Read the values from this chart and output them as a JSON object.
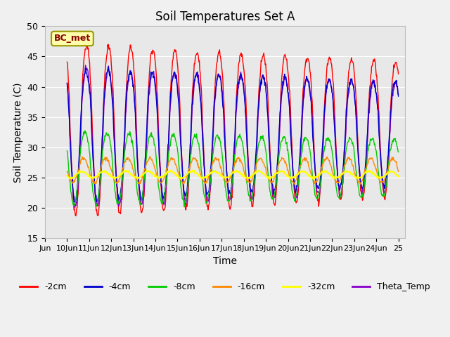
{
  "title": "Soil Temperatures Set A",
  "xlabel": "Time",
  "ylabel": "Soil Temperature (C)",
  "ylim": [
    15,
    50
  ],
  "annotation": "BC_met",
  "fig_bg_color": "#f0f0f0",
  "plot_bg_color": "#e8e8e8",
  "series_colors": {
    "-2cm": "#ff0000",
    "-4cm": "#0000cc",
    "-8cm": "#00cc00",
    "-16cm": "#ff8800",
    "-32cm": "#ffff00",
    "Theta_Temp": "#8800cc"
  },
  "tick_labels": [
    "Jun",
    "10Jun",
    "11Jun",
    "12Jun",
    "13Jun",
    "14Jun",
    "15Jun",
    "16Jun",
    "17Jun",
    "18Jun",
    "19Jun",
    "20Jun",
    "21Jun",
    "22Jun",
    "23Jun",
    "24Jun",
    "25"
  ],
  "tick_positions": [
    9,
    10,
    11,
    12,
    13,
    14,
    15,
    16,
    17,
    18,
    19,
    20,
    21,
    22,
    23,
    24,
    25
  ],
  "yticks": [
    15,
    20,
    25,
    30,
    35,
    40,
    45,
    50
  ],
  "xlim": [
    9,
    25.3
  ],
  "num_points": 720
}
